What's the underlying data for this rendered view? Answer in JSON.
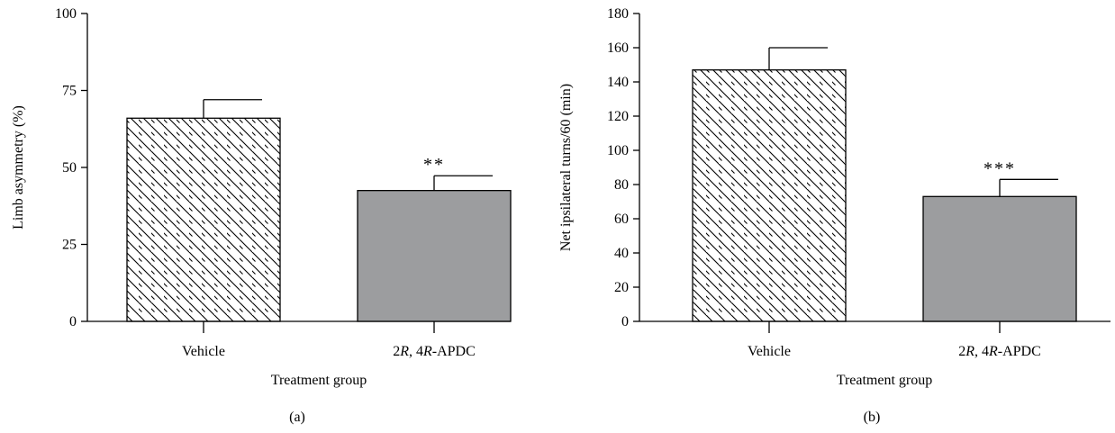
{
  "chart_data": [
    {
      "type": "bar",
      "panel_label": "(a)",
      "categories": [
        "Vehicle",
        "2R, 4R-APDC"
      ],
      "categories_display": [
        [
          "Vehicle"
        ],
        [
          [
            "2",
            "R",
            ", 4",
            "R",
            "-APDC"
          ]
        ]
      ],
      "values": [
        66,
        42.5
      ],
      "errors": [
        6,
        4.8
      ],
      "significance": [
        "",
        "**"
      ],
      "xlabel": "Treatment group",
      "ylabel": "Limb asymmetry (%)",
      "ylim": [
        0,
        100
      ],
      "yticks": [
        0,
        25,
        50,
        75,
        100
      ],
      "bar_styles": [
        "hatched",
        "solid"
      ],
      "bar_fill": "#9c9d9f",
      "grid": false
    },
    {
      "type": "bar",
      "panel_label": "(b)",
      "categories": [
        "Vehicle",
        "2R, 4R-APDC"
      ],
      "values": [
        147,
        73
      ],
      "errors": [
        13,
        10
      ],
      "significance": [
        "",
        "***"
      ],
      "xlabel": "Treatment group",
      "ylabel": "Net ipsilateral turns/60 (min)",
      "ylim": [
        0,
        180
      ],
      "yticks": [
        0,
        20,
        40,
        60,
        80,
        100,
        120,
        140,
        160,
        180
      ],
      "bar_styles": [
        "hatched",
        "solid"
      ],
      "bar_fill": "#9c9d9f",
      "grid": false
    }
  ]
}
